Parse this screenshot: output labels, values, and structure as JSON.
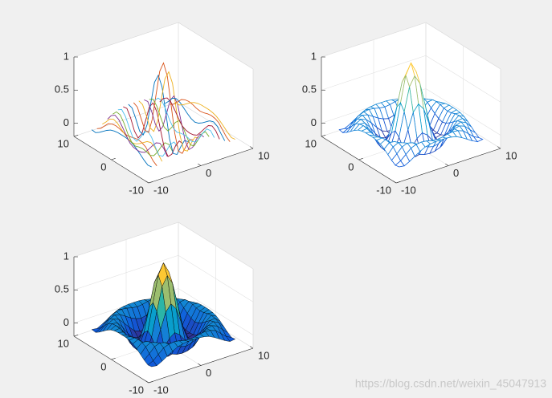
{
  "watermark": "https://blog.csdn.net/weixin_45047913",
  "colormap": [
    "#352a87",
    "#0f5cdd",
    "#1481d6",
    "#06a4ca",
    "#2eb7a4",
    "#87bf77",
    "#d1bb59",
    "#fec832",
    "#f9fb0e"
  ],
  "surface": {
    "x": [
      -8,
      -7,
      -6,
      -5,
      -4,
      -3,
      -2,
      -1,
      0,
      1,
      2,
      3,
      4,
      5,
      6,
      7,
      8
    ],
    "y": [
      -8,
      -7,
      -6,
      -5,
      -4,
      -3,
      -2,
      -1,
      0,
      1,
      2,
      3,
      4,
      5,
      6,
      7,
      8
    ],
    "z": [
      [
        -0.08,
        -0.09,
        -0.05,
        0,
        0.05,
        0.09,
        0.11,
        0.12,
        0.12,
        0.12,
        0.11,
        0.09,
        0.05,
        0,
        -0.05,
        -0.09,
        -0.08
      ],
      [
        -0.09,
        -0.05,
        0.02,
        0.09,
        0.12,
        0.13,
        0.12,
        0.1,
        0.09,
        0.1,
        0.12,
        0.13,
        0.12,
        0.09,
        0.02,
        -0.05,
        -0.09
      ],
      [
        -0.05,
        0.02,
        0.1,
        0.13,
        0.11,
        0.06,
        0.01,
        -0.03,
        -0.05,
        -0.03,
        0.01,
        0.06,
        0.11,
        0.13,
        0.1,
        0.02,
        -0.05
      ],
      [
        0,
        0.09,
        0.13,
        0.1,
        0.02,
        -0.07,
        -0.15,
        -0.18,
        -0.19,
        -0.18,
        -0.15,
        -0.07,
        0.02,
        0.1,
        0.13,
        0.09,
        0
      ],
      [
        0.05,
        0.12,
        0.11,
        0.02,
        -0.1,
        -0.19,
        -0.22,
        -0.2,
        -0.19,
        -0.2,
        -0.22,
        -0.19,
        -0.1,
        0.02,
        0.11,
        0.12,
        0.05
      ],
      [
        0.09,
        0.13,
        0.06,
        -0.07,
        -0.19,
        -0.21,
        -0.12,
        -0.01,
        0.05,
        -0.01,
        -0.12,
        -0.21,
        -0.19,
        -0.07,
        0.06,
        0.13,
        0.09
      ],
      [
        0.11,
        0.12,
        0.01,
        -0.15,
        -0.22,
        -0.12,
        0.11,
        0.35,
        0.45,
        0.35,
        0.11,
        -0.12,
        -0.22,
        -0.15,
        0.01,
        0.12,
        0.11
      ],
      [
        0.12,
        0.1,
        -0.03,
        -0.18,
        -0.2,
        -0.01,
        0.35,
        0.7,
        0.84,
        0.7,
        0.35,
        -0.01,
        -0.2,
        -0.18,
        -0.03,
        0.1,
        0.12
      ],
      [
        0.12,
        0.09,
        -0.05,
        -0.19,
        -0.19,
        0.05,
        0.45,
        0.84,
        1,
        0.84,
        0.45,
        0.05,
        -0.19,
        -0.19,
        -0.05,
        0.09,
        0.12
      ],
      [
        0.12,
        0.1,
        -0.03,
        -0.18,
        -0.2,
        -0.01,
        0.35,
        0.7,
        0.84,
        0.7,
        0.35,
        -0.01,
        -0.2,
        -0.18,
        -0.03,
        0.1,
        0.12
      ],
      [
        0.11,
        0.12,
        0.01,
        -0.15,
        -0.22,
        -0.12,
        0.11,
        0.35,
        0.45,
        0.35,
        0.11,
        -0.12,
        -0.22,
        -0.15,
        0.01,
        0.12,
        0.11
      ],
      [
        0.09,
        0.13,
        0.06,
        -0.07,
        -0.19,
        -0.21,
        -0.12,
        -0.01,
        0.05,
        -0.01,
        -0.12,
        -0.21,
        -0.19,
        -0.07,
        0.06,
        0.13,
        0.09
      ],
      [
        0.05,
        0.12,
        0.11,
        0.02,
        -0.1,
        -0.19,
        -0.22,
        -0.2,
        -0.19,
        -0.2,
        -0.22,
        -0.19,
        -0.1,
        0.02,
        0.11,
        0.12,
        0.05
      ],
      [
        0,
        0.09,
        0.13,
        0.1,
        0.02,
        -0.07,
        -0.15,
        -0.18,
        -0.19,
        -0.18,
        -0.15,
        -0.07,
        0.02,
        0.1,
        0.13,
        0.09,
        0
      ],
      [
        -0.05,
        0.02,
        0.1,
        0.13,
        0.11,
        0.06,
        0.01,
        -0.03,
        -0.05,
        -0.03,
        0.01,
        0.06,
        0.11,
        0.13,
        0.1,
        0.02,
        -0.05
      ],
      [
        -0.09,
        -0.05,
        0.02,
        0.09,
        0.12,
        0.13,
        0.12,
        0.1,
        0.09,
        0.1,
        0.12,
        0.13,
        0.12,
        0.09,
        0.02,
        -0.05,
        -0.09
      ],
      [
        -0.08,
        -0.09,
        -0.05,
        0,
        0.05,
        0.09,
        0.11,
        0.12,
        0.12,
        0.12,
        0.11,
        0.09,
        0.05,
        0,
        -0.05,
        -0.09,
        -0.08
      ]
    ]
  },
  "chart_data": [
    {
      "type": "line",
      "colors": [
        "#0072bd",
        "#d95319",
        "#edb120",
        "#7e2f8e",
        "#77ac30",
        "#4dbeee",
        "#a2142f"
      ],
      "xlim": [
        -10,
        10
      ],
      "ylim": [
        -10,
        10
      ],
      "zlim": [
        -0.2,
        1
      ],
      "xticks": [
        -10,
        0,
        10
      ],
      "yticks": [
        -10,
        0,
        10
      ],
      "zticks": [
        0,
        0.5,
        1
      ],
      "grid": false
    },
    {
      "type": "mesh",
      "facecolor": "#ffffff",
      "xlim": [
        -10,
        10
      ],
      "ylim": [
        -10,
        10
      ],
      "zlim": [
        -0.2,
        1
      ],
      "xticks": [
        -10,
        0,
        10
      ],
      "yticks": [
        -10,
        0,
        10
      ],
      "zticks": [
        0,
        0.5,
        1
      ],
      "grid": true
    },
    {
      "type": "surf",
      "edgecolor": "#000000",
      "xlim": [
        -10,
        10
      ],
      "ylim": [
        -10,
        10
      ],
      "zlim": [
        -0.2,
        1
      ],
      "xticks": [
        -10,
        0,
        10
      ],
      "yticks": [
        -10,
        0,
        10
      ],
      "zticks": [
        0,
        0.5,
        1
      ],
      "grid": true
    }
  ]
}
